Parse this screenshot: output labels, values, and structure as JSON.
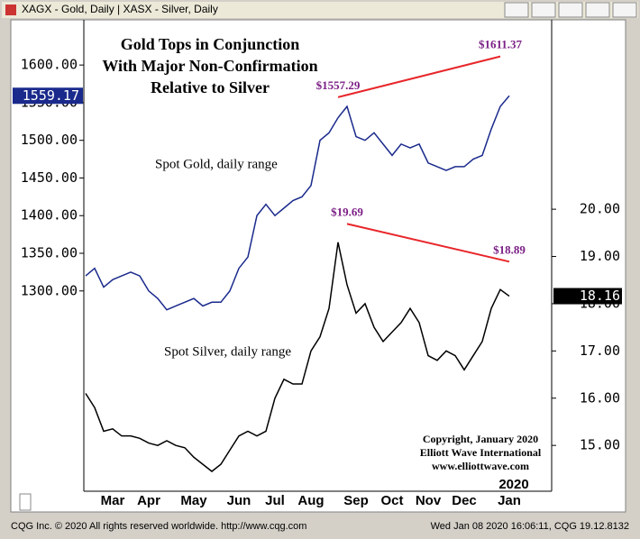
{
  "header": {
    "text": "XAGX - Gold, Daily  |  XASX - Silver, Daily"
  },
  "footer": {
    "left": "CQG Inc. © 2020 All rights reserved worldwide. http://www.cqg.com",
    "right": "Wed Jan 08 2020 16:06:11, CQG 19.12.8132"
  },
  "chart_data": {
    "type": "line",
    "title": [
      "Gold Tops in Conjunction",
      "With Major Non-Confirmation",
      "Relative to Silver"
    ],
    "year_label": "2020",
    "copyright": [
      "Copyright, January 2020",
      "Elliott Wave International",
      "www.elliottwave.com"
    ],
    "series_labels": [
      "Spot Gold, daily range",
      "Spot Silver, daily range"
    ],
    "categories": [
      null,
      null,
      null,
      "Mar",
      null,
      null,
      null,
      "Apr",
      null,
      null,
      null,
      null,
      "May",
      null,
      null,
      null,
      null,
      "Jun",
      null,
      null,
      null,
      "Jul",
      null,
      null,
      null,
      "Aug",
      null,
      null,
      null,
      null,
      "Sep",
      null,
      null,
      null,
      "Oct",
      null,
      null,
      null,
      "Nov",
      null,
      null,
      null,
      "Dec",
      null,
      null,
      null,
      null,
      "Jan"
    ],
    "series": [
      {
        "name": "Gold",
        "color": "#1a2a8c",
        "axis": "y",
        "last_value": 1559.17,
        "values": [
          1320,
          1330,
          1305,
          1315,
          1320,
          1325,
          1320,
          1300,
          1290,
          1275,
          1280,
          1285,
          1290,
          1280,
          1285,
          1285,
          1300,
          1330,
          1345,
          1400,
          1415,
          1400,
          1410,
          1420,
          1425,
          1440,
          1500,
          1510,
          1530,
          1545,
          1505,
          1500,
          1510,
          1495,
          1480,
          1495,
          1490,
          1495,
          1470,
          1465,
          1460,
          1465,
          1465,
          1475,
          1480,
          1515,
          1545,
          1559.17
        ]
      },
      {
        "name": "Silver",
        "color": "#000000",
        "axis": "y2",
        "last_value": 18.16,
        "values": [
          16.1,
          15.8,
          15.3,
          15.35,
          15.2,
          15.2,
          15.15,
          15.05,
          15.0,
          15.1,
          15.0,
          14.95,
          14.75,
          14.6,
          14.45,
          14.6,
          14.9,
          15.2,
          15.3,
          15.2,
          15.3,
          16.0,
          16.4,
          16.3,
          16.3,
          17.0,
          17.3,
          17.9,
          19.3,
          18.4,
          17.8,
          18.0,
          17.5,
          17.2,
          17.4,
          17.6,
          17.9,
          17.6,
          16.9,
          16.8,
          17.0,
          16.9,
          16.6,
          16.9,
          17.2,
          17.9,
          18.3,
          18.16
        ]
      }
    ],
    "annotations": [
      {
        "label": "$1557.29",
        "value": 1557.29,
        "axis": "y",
        "category": 28
      },
      {
        "label": "$1611.37",
        "value": 1611.37,
        "axis": "y",
        "category": 46
      },
      {
        "label": "$19.69",
        "value": 19.69,
        "axis": "y2",
        "category": 29
      },
      {
        "label": "$18.89",
        "value": 18.89,
        "axis": "y2",
        "category": 47
      }
    ],
    "trendline_color": "#e8262a",
    "annotation_color": "#7b1f86",
    "ylim": [
      1034,
      1672
    ],
    "yticks": [
      {
        "value": 1300,
        "label": "1300.00"
      },
      {
        "value": 1350,
        "label": "1350.00"
      },
      {
        "value": 1400,
        "label": "1400.00"
      },
      {
        "value": 1450,
        "label": "1450.00"
      },
      {
        "value": 1500,
        "label": "1500.00"
      },
      {
        "value": 1550,
        "label": "1550.00"
      },
      {
        "value": 1600,
        "label": "1600.00"
      }
    ],
    "y2lim": [
      14.03,
      24.2
    ],
    "y2ticks": [
      {
        "value": 15,
        "label": "15.00"
      },
      {
        "value": 16,
        "label": "16.00"
      },
      {
        "value": 17,
        "label": "17.00"
      },
      {
        "value": 18,
        "label": "18.00"
      },
      {
        "value": 19,
        "label": "19.00"
      },
      {
        "value": 20,
        "label": "20.00"
      }
    ]
  }
}
